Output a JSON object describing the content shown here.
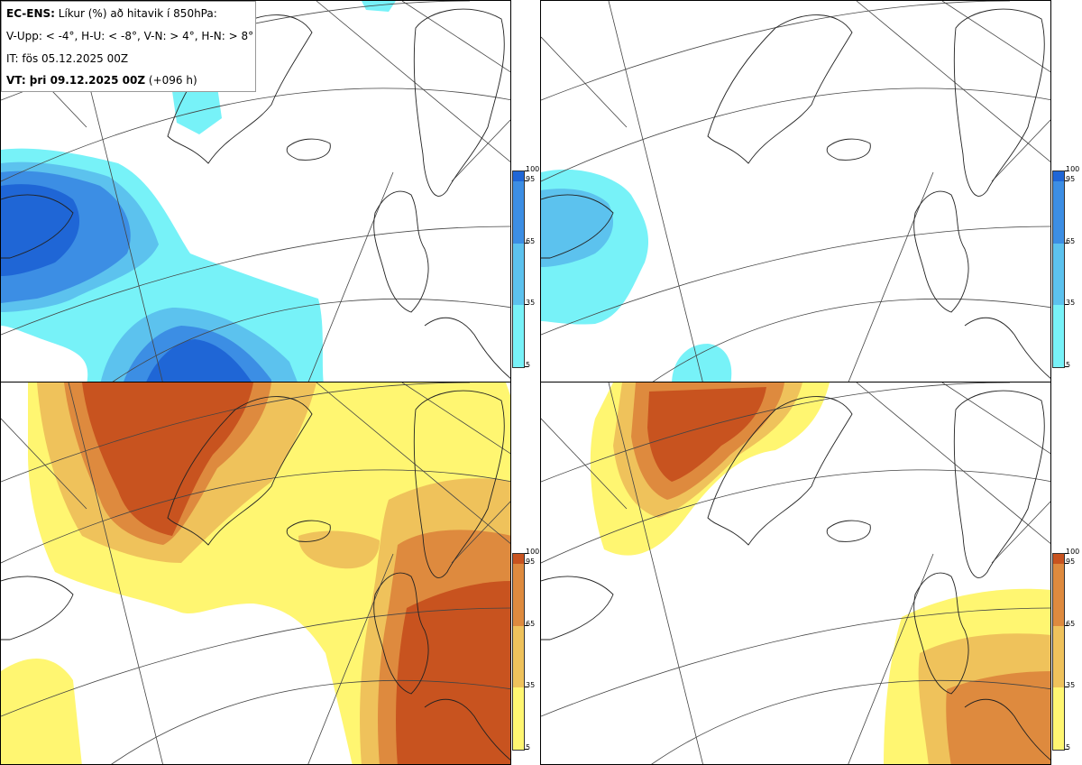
{
  "header": {
    "model_label": "EC-ENS:",
    "title": "Líkur (%) að hitavik í 850hPa:",
    "thresholds": "V-Upp: < -4°, H-U: < -8°, V-N: > 4°, H-N: > 8°",
    "init_time": "IT: fös 05.12.2025 00Z",
    "valid_label": "VT: þri 09.12.2025 00Z",
    "lead_time": "(+096 h)"
  },
  "colorbars": {
    "blue": {
      "ticks": [
        "100",
        "95",
        "65",
        "35",
        "5"
      ],
      "colors": [
        "#1f66d6",
        "#3c8ee4",
        "#5cc2ee",
        "#77f2f8"
      ]
    },
    "orange": {
      "ticks": [
        "100",
        "95",
        "65",
        "35",
        "5"
      ],
      "colors": [
        "#c8531f",
        "#de8a3e",
        "#efc25b",
        "#fff671"
      ]
    }
  },
  "panels": [
    {
      "id": "V-Upp",
      "palette": "blue"
    },
    {
      "id": "H-U",
      "palette": "blue"
    },
    {
      "id": "V-N",
      "palette": "orange"
    },
    {
      "id": "H-N",
      "palette": "orange"
    }
  ]
}
